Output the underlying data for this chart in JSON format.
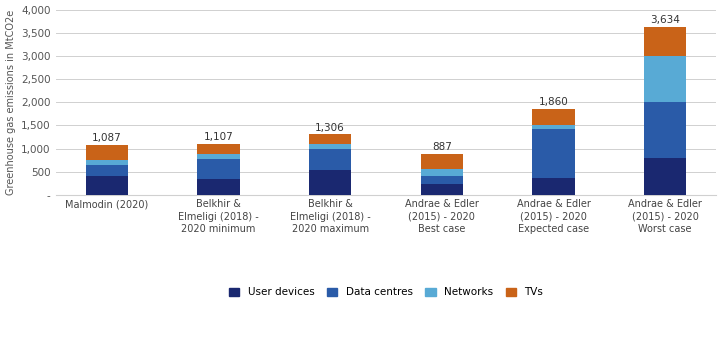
{
  "categories": [
    "Malmodin (2020)",
    "Belkhir &\nElmeligi (2018) -\n2020 minimum",
    "Belkhir &\nElmeligi (2018) -\n2020 maximum",
    "Andrae & Edler\n(2015) - 2020\nBest case",
    "Andrae & Edler\n(2015) - 2020\nExpected case",
    "Andrae & Edler\n(2015) - 2020\nWorst case"
  ],
  "totals": [
    1087,
    1107,
    1306,
    887,
    1860,
    3634
  ],
  "user_devices": [
    410,
    340,
    545,
    240,
    370,
    800
  ],
  "data_centres": [
    230,
    430,
    455,
    160,
    1050,
    1200
  ],
  "networks": [
    110,
    110,
    110,
    160,
    80,
    1000
  ],
  "tvs": [
    337,
    227,
    196,
    327,
    360,
    634
  ],
  "color_user_devices": "#1a2870",
  "color_data_centres": "#2a5ba8",
  "color_networks": "#58aad5",
  "color_tvs": "#c96318",
  "ylabel": "Greenhouse gas emissions in MtCO2e",
  "ylim": [
    0,
    4000
  ],
  "yticks": [
    0,
    500,
    1000,
    1500,
    2000,
    2500,
    3000,
    3500,
    4000
  ],
  "legend_labels": [
    "User devices",
    "Data centres",
    "Networks",
    "TVs"
  ],
  "background_color": "#ffffff",
  "grid_color": "#d0d0d0",
  "bar_width": 0.38,
  "title_fontsize": 9,
  "label_fontsize": 7,
  "tick_fontsize": 7.5
}
